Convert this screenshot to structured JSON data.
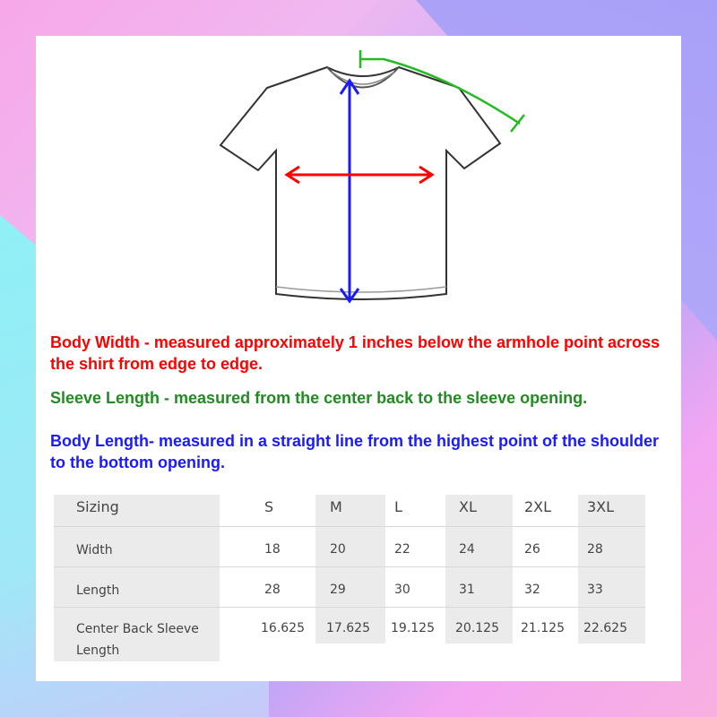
{
  "descriptions": {
    "body_width": "Body Width - measured approximately 1 inches below the armhole point across the shirt from edge to edge.",
    "sleeve_length": "Sleeve Length - measured from the center back to the sleeve opening.",
    "body_length": "Body Length- measured in a straight line from the highest point of the shoulder to the bottom opening."
  },
  "colors": {
    "body_width": "#ff0000",
    "sleeve_length": "#228b22",
    "body_length": "#1a1aff"
  },
  "table": {
    "headers": [
      "Sizing",
      "S",
      "M",
      "L",
      "XL",
      "2XL",
      "3XL"
    ],
    "rows": [
      {
        "label": "Width",
        "values": [
          "18",
          "20",
          "22",
          "24",
          "26",
          "28"
        ]
      },
      {
        "label": "Length",
        "values": [
          "28",
          "29",
          "30",
          "31",
          "32",
          "33"
        ]
      },
      {
        "label": "Center Back Sleeve Length",
        "values": [
          "16.625",
          "17.625",
          "19.125",
          "20.125",
          "21.125",
          "22.625"
        ]
      }
    ]
  }
}
